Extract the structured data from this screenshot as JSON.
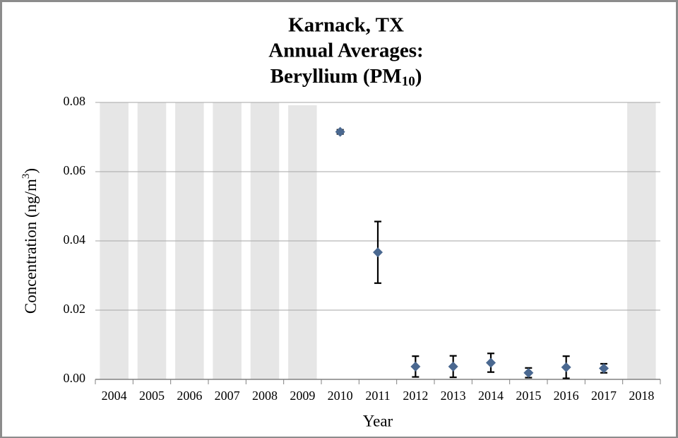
{
  "chart_data": {
    "type": "scatter",
    "title": [
      "Karnack, TX",
      "Annual Averages:",
      [
        "Beryllium (PM",
        "10",
        ")"
      ]
    ],
    "x_label": "Year",
    "y_label": [
      "Concentration (ng/m",
      "3",
      ")"
    ],
    "categories": [
      "2004",
      "2005",
      "2006",
      "2007",
      "2008",
      "2009",
      "2010",
      "2011",
      "2012",
      "2013",
      "2014",
      "2015",
      "2016",
      "2017",
      "2018"
    ],
    "not_sampled": {
      "color": "#e6e6e6",
      "values": [
        0.08,
        0.08,
        0.08,
        0.08,
        0.08,
        0.0792,
        null,
        null,
        null,
        null,
        null,
        null,
        null,
        null,
        0.08
      ]
    },
    "series": [
      {
        "color": "#4a6890",
        "values": [
          null,
          null,
          null,
          null,
          null,
          null,
          0.0715,
          0.0367,
          0.0037,
          0.0037,
          0.0048,
          0.0019,
          0.0035,
          0.0032,
          null
        ],
        "errors": [
          null,
          null,
          null,
          null,
          null,
          null,
          0.0006,
          0.0089,
          0.003,
          0.0031,
          0.0027,
          0.0014,
          0.0032,
          0.0013,
          null
        ]
      }
    ],
    "ylim": [
      0,
      0.08
    ],
    "yticks": [
      {
        "value": 0,
        "label": "0.00"
      },
      0.02,
      0.04,
      0.06,
      0.08
    ],
    "grid": true
  }
}
